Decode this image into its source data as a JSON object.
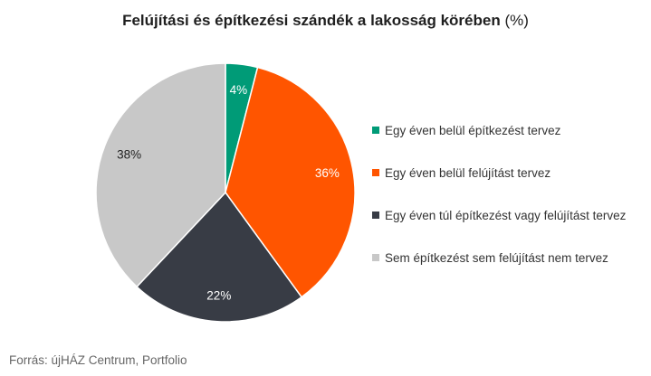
{
  "title": "Felújítási és építkezési szándék a lakosság körében",
  "title_unit": "(%)",
  "source": "Forrás: újHÁZ Centrum, Portfolio",
  "chart_data": {
    "type": "pie",
    "title": "Felújítási és építkezési szándék a lakosság körében (%)",
    "unit": "%",
    "legend_position": "right",
    "slices": [
      {
        "label": "Egy éven belül építkezést tervez",
        "value": 4,
        "display": "4%",
        "color": "#009b77",
        "label_color": "#ffffff"
      },
      {
        "label": "Egy éven belül felújítást tervez",
        "value": 36,
        "display": "36%",
        "color": "#ff5500",
        "label_color": "#ffffff"
      },
      {
        "label": "Egy éven túl építkezést vagy felújítást tervez",
        "value": 22,
        "display": "22%",
        "color": "#383c45",
        "label_color": "#ffffff"
      },
      {
        "label": "Sem építkezést sem felújítást nem tervez",
        "value": 38,
        "display": "38%",
        "color": "#c8c8c8",
        "label_color": "#222222"
      }
    ]
  }
}
